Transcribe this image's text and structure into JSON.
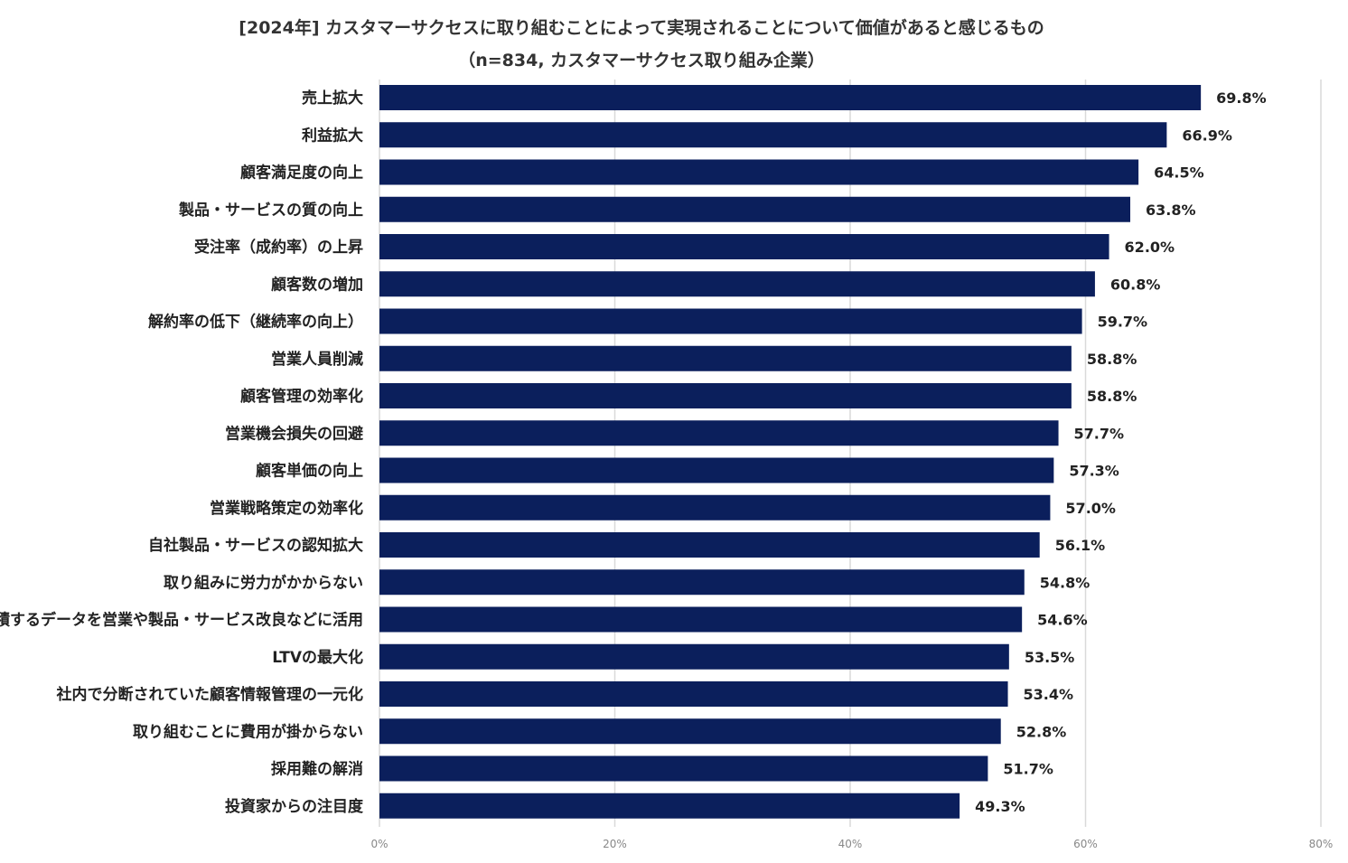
{
  "chart_data": {
    "type": "bar",
    "orientation": "horizontal",
    "title": "[2024年] カスタマーサクセスに取り組むことによって実現されることについて価値があると感じるもの",
    "subtitle": "（n=834, カスタマーサクセス取り組み企業）",
    "categories": [
      "売上拡大",
      "利益拡大",
      "顧客満足度の向上",
      "製品・サービスの質の向上",
      "受注率（成約率）の上昇",
      "顧客数の増加",
      "解約率の低下（継続率の向上）",
      "営業人員削減",
      "顧客管理の効率化",
      "営業機会損失の回避",
      "顧客単価の向上",
      "営業戦略策定の効率化",
      "自社製品・サービスの認知拡大",
      "取り組みに労力がかからない",
      "蓄積するデータを営業や製品・サービス改良などに活用",
      "LTVの最大化",
      "社内で分断されていた顧客情報管理の一元化",
      "取り組むことに費用が掛からない",
      "採用難の解消",
      "投資家からの注目度"
    ],
    "values": [
      69.8,
      66.9,
      64.5,
      63.8,
      62.0,
      60.8,
      59.7,
      58.8,
      58.8,
      57.7,
      57.3,
      57.0,
      56.1,
      54.8,
      54.6,
      53.5,
      53.4,
      52.8,
      51.7,
      49.3
    ],
    "value_labels": [
      "69.8%",
      "66.9%",
      "64.5%",
      "63.8%",
      "62.0%",
      "60.8%",
      "59.7%",
      "58.8%",
      "58.8%",
      "57.7%",
      "57.3%",
      "57.0%",
      "56.1%",
      "54.8%",
      "54.6%",
      "53.5%",
      "53.4%",
      "52.8%",
      "51.7%",
      "49.3%"
    ],
    "xlim": [
      0,
      80
    ],
    "x_ticks": [
      0,
      20,
      40,
      60,
      80
    ],
    "x_tick_labels": [
      "0%",
      "20%",
      "40%",
      "60%",
      "80%"
    ],
    "grid": "vertical",
    "bar_color": "#0b1f5c",
    "grid_color": "#d9d9d9",
    "xlabel": "",
    "ylabel": ""
  }
}
